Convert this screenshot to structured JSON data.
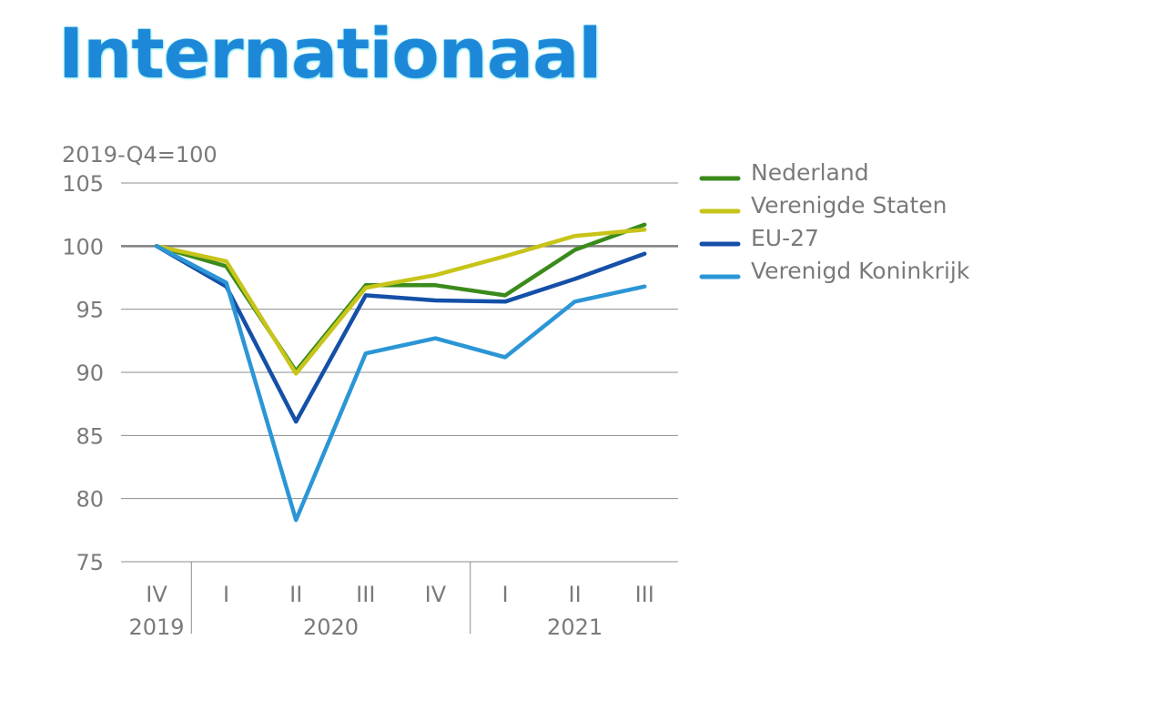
{
  "title": "Internationaal",
  "chart_data": {
    "type": "line",
    "title": "Internationaal",
    "ylabel": "2019-Q4=100",
    "xlabel": "",
    "ylim": [
      75,
      105
    ],
    "yticks": [
      "105",
      "100",
      "95",
      "90",
      "85",
      "80",
      "75"
    ],
    "reference_line": 100,
    "categories": [
      "IV",
      "I",
      "II",
      "III",
      "IV",
      "I",
      "II",
      "III"
    ],
    "years": [
      {
        "label": "2019",
        "start": 0,
        "end": 0
      },
      {
        "label": "2020",
        "start": 1,
        "end": 4
      },
      {
        "label": "2021",
        "start": 5,
        "end": 7
      }
    ],
    "grid": true,
    "legend_position": "right",
    "series": [
      {
        "name": "Nederland",
        "color": "#3b8b1c",
        "values": [
          100,
          98.4,
          90.1,
          96.9,
          96.9,
          96.1,
          99.7,
          101.7
        ]
      },
      {
        "name": "Verenigde Staten",
        "color": "#c7c41a",
        "values": [
          100,
          98.8,
          89.9,
          96.7,
          97.7,
          99.2,
          100.8,
          101.3
        ]
      },
      {
        "name": "EU-27",
        "color": "#1550a8",
        "values": [
          100,
          96.8,
          86.1,
          96.1,
          95.7,
          95.6,
          97.4,
          99.4
        ]
      },
      {
        "name": "Verenigd Koninkrijk",
        "color": "#2b96d6",
        "values": [
          100,
          97.1,
          78.3,
          91.5,
          92.7,
          91.2,
          95.6,
          96.8
        ]
      }
    ]
  }
}
